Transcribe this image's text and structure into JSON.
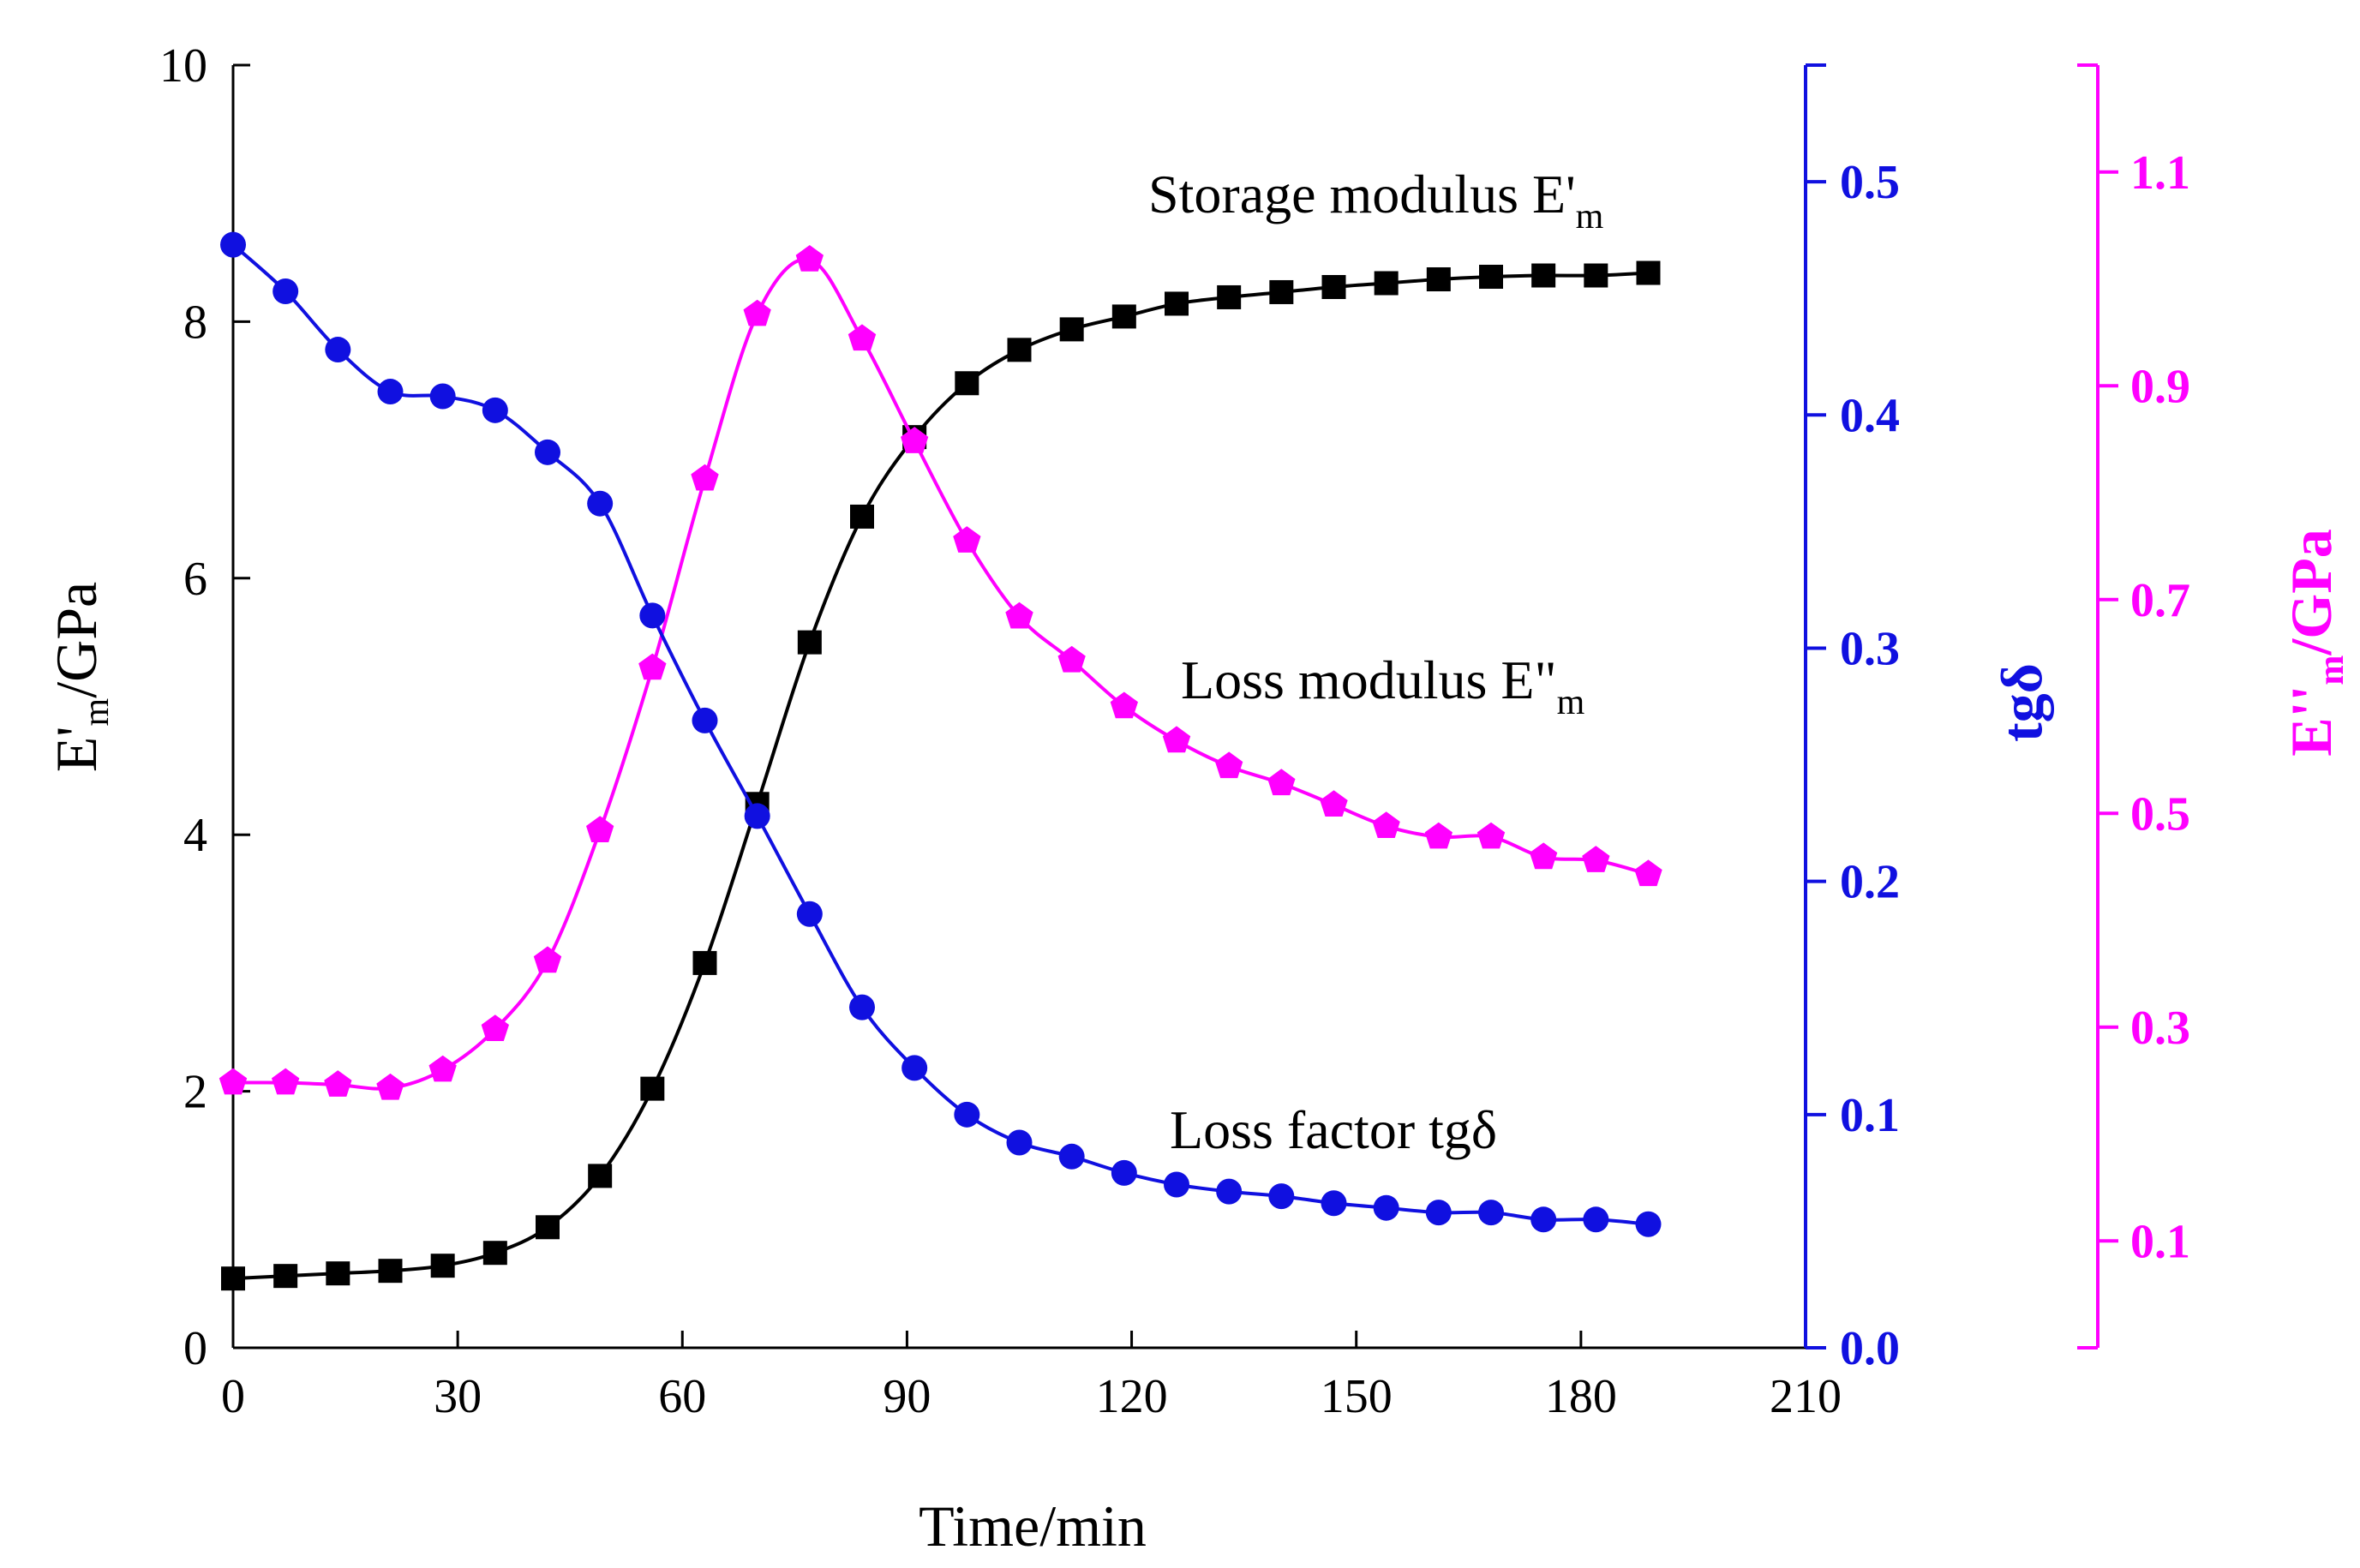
{
  "chart_data": {
    "type": "line",
    "x": [
      0,
      7,
      14,
      21,
      28,
      35,
      42,
      49,
      56,
      63,
      70,
      77,
      84,
      91,
      98,
      105,
      112,
      119,
      126,
      133,
      140,
      147,
      154,
      161,
      168,
      175,
      182,
      189
    ],
    "xlabel": "Time/min",
    "xlim": [
      0,
      210
    ],
    "xticks": [
      0,
      30,
      60,
      90,
      120,
      150,
      180,
      210
    ],
    "axes": {
      "left": {
        "label_main": "E'",
        "label_sub": "m",
        "label_tail": "/GPa",
        "range": [
          0,
          10
        ],
        "ticks": [
          0,
          2,
          4,
          6,
          8,
          10
        ],
        "color": "#000000"
      },
      "right1": {
        "label": "tgδ",
        "range": [
          0,
          0.55
        ],
        "ticks": [
          0.0,
          0.1,
          0.2,
          0.3,
          0.4,
          0.5
        ],
        "tick_labels": [
          "0.0",
          "0.1",
          "0.2",
          "0.3",
          "0.4",
          "0.5"
        ],
        "color": "#1010e0"
      },
      "right2": {
        "label_main": "E''",
        "label_sub": "m",
        "label_tail": "/GPa",
        "range": [
          0,
          1.2
        ],
        "ticks": [
          0.1,
          0.3,
          0.5,
          0.7,
          0.9,
          1.1
        ],
        "tick_labels": [
          "0.1",
          "0.3",
          "0.5",
          "0.7",
          "0.9",
          "1.1"
        ],
        "color": "#ff00ff"
      }
    },
    "series": [
      {
        "name": "Storage modulus E'm",
        "axis": "left",
        "marker": "square",
        "color": "#000000",
        "values": [
          0.54,
          0.56,
          0.58,
          0.6,
          0.64,
          0.74,
          0.94,
          1.34,
          2.02,
          3.0,
          4.24,
          5.5,
          6.48,
          7.1,
          7.52,
          7.78,
          7.94,
          8.04,
          8.14,
          8.19,
          8.23,
          8.27,
          8.3,
          8.33,
          8.35,
          8.36,
          8.36,
          8.38
        ]
      },
      {
        "name": "Loss modulus E''m",
        "axis": "right2",
        "marker": "pentagon",
        "color": "#ff00ff",
        "values": [
          0.248,
          0.248,
          0.246,
          0.243,
          0.26,
          0.298,
          0.362,
          0.484,
          0.636,
          0.813,
          0.967,
          1.018,
          0.944,
          0.848,
          0.755,
          0.684,
          0.643,
          0.6,
          0.568,
          0.544,
          0.528,
          0.508,
          0.488,
          0.478,
          0.478,
          0.459,
          0.456,
          0.443
        ]
      },
      {
        "name": "Loss factor tgδ",
        "axis": "right1",
        "marker": "circle",
        "color": "#1010e0",
        "values": [
          0.473,
          0.453,
          0.428,
          0.41,
          0.408,
          0.402,
          0.384,
          0.362,
          0.314,
          0.269,
          0.228,
          0.186,
          0.146,
          0.12,
          0.1,
          0.088,
          0.082,
          0.075,
          0.07,
          0.067,
          0.065,
          0.062,
          0.06,
          0.058,
          0.058,
          0.055,
          0.055,
          0.053
        ]
      }
    ],
    "annotations": {
      "storage": {
        "main": "Storage modulus E'",
        "sub": "m"
      },
      "loss": {
        "main": "Loss modulus E\"",
        "sub": "m"
      },
      "factor": {
        "main": "Loss factor tgδ"
      }
    }
  }
}
